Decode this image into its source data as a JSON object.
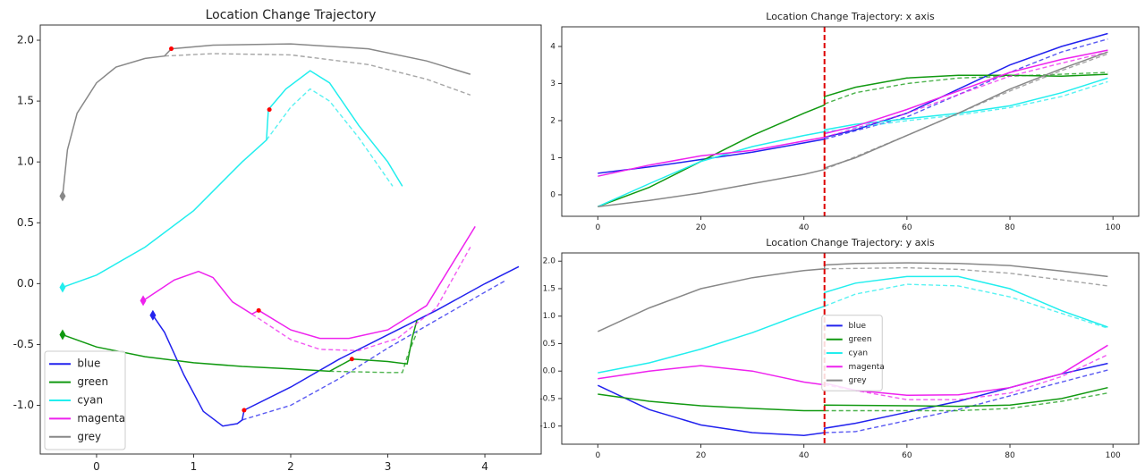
{
  "chart_data": [
    {
      "type": "line",
      "title": "Location Change Trajectory",
      "xlim": [
        -0.58,
        4.58
      ],
      "ylim": [
        -1.4,
        2.125
      ],
      "xticks": [
        0,
        1,
        2,
        3,
        4
      ],
      "yticks": [
        {
          "value": -1,
          "label": "-1.0"
        },
        -0.5,
        {
          "value": 0,
          "label": "0.0"
        },
        0.5,
        {
          "value": 1,
          "label": "1.0"
        },
        1.5,
        {
          "value": 2,
          "label": "2.0"
        }
      ],
      "legend": "lower left",
      "markers": true,
      "change_color": "#ff0000",
      "series": [
        {
          "name": "blue",
          "color": "#2222ee",
          "x": [
            0.58,
            0.7,
            0.9,
            1.1,
            1.3,
            1.45,
            1.5,
            1.52,
            2.0,
            2.5,
            3.0,
            3.5,
            4.0,
            4.35
          ],
          "values": [
            -0.26,
            -0.4,
            -0.75,
            -1.05,
            -1.17,
            -1.15,
            -1.12,
            -1.04,
            -0.85,
            -0.62,
            -0.42,
            -0.22,
            0.0,
            0.14
          ],
          "dashed": {
            "x": [
              1.5,
              2.0,
              2.5,
              3.0,
              3.5,
              4.0,
              4.2
            ],
            "values": [
              -1.12,
              -1.0,
              -0.78,
              -0.53,
              -0.3,
              -0.07,
              0.02
            ]
          },
          "change": {
            "x": 1.52,
            "y": -1.04
          }
        },
        {
          "name": "green",
          "color": "#119911",
          "x": [
            -0.35,
            0.0,
            0.5,
            1.0,
            1.5,
            2.0,
            2.4,
            2.63,
            3.0,
            3.2,
            3.25,
            3.3
          ],
          "values": [
            -0.42,
            -0.52,
            -0.6,
            -0.65,
            -0.68,
            -0.7,
            -0.72,
            -0.62,
            -0.64,
            -0.66,
            -0.45,
            -0.3
          ],
          "dashed": {
            "x": [
              2.4,
              3.0,
              3.15,
              3.2,
              3.3
            ],
            "values": [
              -0.72,
              -0.73,
              -0.73,
              -0.6,
              -0.4
            ]
          },
          "change": {
            "x": 2.63,
            "y": -0.62
          }
        },
        {
          "name": "cyan",
          "color": "#22eeee",
          "x": [
            -0.35,
            0.0,
            0.5,
            1.0,
            1.5,
            1.75,
            1.77,
            1.95,
            2.2,
            2.4,
            2.7,
            3.0,
            3.15
          ],
          "values": [
            -0.03,
            0.07,
            0.3,
            0.6,
            1.0,
            1.18,
            1.43,
            1.6,
            1.75,
            1.65,
            1.3,
            1.0,
            0.8
          ],
          "dashed": {
            "x": [
              1.75,
              2.0,
              2.2,
              2.4,
              2.7,
              3.05
            ],
            "values": [
              1.18,
              1.45,
              1.6,
              1.5,
              1.2,
              0.8
            ]
          },
          "change": {
            "x": 1.78,
            "y": 1.43
          }
        },
        {
          "name": "magenta",
          "color": "#ee22ee",
          "x": [
            0.48,
            0.8,
            1.05,
            1.2,
            1.4,
            1.6,
            1.67,
            2.0,
            2.3,
            2.6,
            3.0,
            3.4,
            3.9
          ],
          "values": [
            -0.14,
            0.03,
            0.1,
            0.05,
            -0.15,
            -0.25,
            -0.22,
            -0.38,
            -0.45,
            -0.45,
            -0.38,
            -0.18,
            0.47
          ],
          "dashed": {
            "x": [
              1.6,
              2.0,
              2.3,
              2.7,
              3.1,
              3.5,
              3.85
            ],
            "values": [
              -0.25,
              -0.46,
              -0.54,
              -0.55,
              -0.45,
              -0.2,
              0.3
            ]
          },
          "change": {
            "x": 1.67,
            "y": -0.22
          }
        },
        {
          "name": "grey",
          "color": "#888888",
          "x": [
            -0.35,
            -0.3,
            -0.2,
            0.0,
            0.2,
            0.5,
            0.7,
            0.77,
            1.2,
            2.0,
            2.8,
            3.4,
            3.85
          ],
          "values": [
            0.72,
            1.1,
            1.4,
            1.65,
            1.78,
            1.85,
            1.87,
            1.93,
            1.96,
            1.97,
            1.93,
            1.83,
            1.72
          ],
          "dashed": {
            "x": [
              0.7,
              1.2,
              2.0,
              2.8,
              3.4,
              3.85
            ],
            "values": [
              1.87,
              1.89,
              1.88,
              1.8,
              1.68,
              1.55
            ]
          },
          "change": {
            "x": 0.77,
            "y": 1.93
          }
        }
      ]
    },
    {
      "type": "line",
      "title": "Location Change Trajectory: x axis",
      "xlim": [
        -7,
        105
      ],
      "ylim": [
        -0.58,
        4.53
      ],
      "xticks": [
        0,
        20,
        40,
        60,
        80,
        100
      ],
      "yticks": [
        0,
        1,
        2,
        3,
        4
      ],
      "vline": 44,
      "vline_color": "#dd0000",
      "series": [
        {
          "name": "blue",
          "color": "#2222ee",
          "x": [
            0,
            10,
            20,
            30,
            40,
            44,
            44,
            50,
            60,
            70,
            80,
            90,
            99
          ],
          "values": [
            0.58,
            0.75,
            0.95,
            1.15,
            1.4,
            1.5,
            1.55,
            1.75,
            2.2,
            2.85,
            3.5,
            4.0,
            4.35
          ],
          "dashed": {
            "x": [
              44,
              60,
              70,
              80,
              90,
              99
            ],
            "values": [
              1.5,
              2.1,
              2.7,
              3.3,
              3.85,
              4.2
            ]
          }
        },
        {
          "name": "green",
          "color": "#119911",
          "x": [
            0,
            10,
            20,
            30,
            40,
            44,
            44,
            50,
            60,
            70,
            80,
            90,
            99
          ],
          "values": [
            -0.32,
            0.2,
            0.9,
            1.6,
            2.2,
            2.42,
            2.65,
            2.9,
            3.15,
            3.22,
            3.22,
            3.2,
            3.25
          ],
          "dashed": {
            "x": [
              44,
              50,
              60,
              70,
              80,
              90,
              99
            ],
            "values": [
              2.45,
              2.75,
              3.0,
              3.15,
              3.2,
              3.25,
              3.3
            ]
          }
        },
        {
          "name": "cyan",
          "color": "#22eeee",
          "x": [
            0,
            10,
            20,
            30,
            40,
            44,
            44,
            50,
            60,
            70,
            80,
            90,
            99
          ],
          "values": [
            -0.32,
            0.3,
            0.9,
            1.3,
            1.6,
            1.7,
            1.75,
            1.9,
            2.05,
            2.2,
            2.4,
            2.75,
            3.15
          ],
          "dashed": {
            "x": [
              44,
              60,
              70,
              80,
              90,
              99
            ],
            "values": [
              1.7,
              2.0,
              2.15,
              2.35,
              2.65,
              3.05
            ]
          }
        },
        {
          "name": "magenta",
          "color": "#ee22ee",
          "x": [
            0,
            10,
            20,
            30,
            40,
            44,
            44,
            50,
            60,
            70,
            80,
            90,
            99
          ],
          "values": [
            0.5,
            0.8,
            1.05,
            1.2,
            1.45,
            1.55,
            1.65,
            1.85,
            2.3,
            2.8,
            3.3,
            3.65,
            3.9
          ],
          "dashed": {
            "x": [
              44,
              60,
              70,
              80,
              90,
              99
            ],
            "values": [
              1.55,
              2.2,
              2.7,
              3.2,
              3.55,
              3.85
            ]
          }
        },
        {
          "name": "grey",
          "color": "#888888",
          "x": [
            0,
            10,
            20,
            30,
            40,
            44,
            44,
            50,
            60,
            70,
            80,
            90,
            99
          ],
          "values": [
            -0.32,
            -0.15,
            0.05,
            0.3,
            0.55,
            0.68,
            0.72,
            1.0,
            1.6,
            2.2,
            2.85,
            3.4,
            3.85
          ],
          "dashed": {
            "x": [
              44,
              60,
              70,
              80,
              90,
              99
            ],
            "values": [
              0.68,
              1.6,
              2.2,
              2.8,
              3.35,
              3.8
            ]
          }
        }
      ]
    },
    {
      "type": "line",
      "title": "Location Change Trajectory: y axis",
      "xlim": [
        -7,
        105
      ],
      "ylim": [
        -1.33,
        2.15
      ],
      "xticks": [
        0,
        20,
        40,
        60,
        80,
        100
      ],
      "yticks": [
        {
          "value": -1,
          "label": "-1.0"
        },
        -0.5,
        {
          "value": 0,
          "label": "0.0"
        },
        0.5,
        {
          "value": 1,
          "label": "1.0"
        },
        1.5,
        {
          "value": 2,
          "label": "2.0"
        }
      ],
      "vline": 44,
      "vline_color": "#dd0000",
      "legend": "center",
      "series": [
        {
          "name": "blue",
          "color": "#2222ee",
          "x": [
            0,
            10,
            20,
            30,
            40,
            44,
            44,
            50,
            60,
            70,
            80,
            90,
            99
          ],
          "values": [
            -0.26,
            -0.7,
            -0.98,
            -1.12,
            -1.17,
            -1.12,
            -1.04,
            -0.95,
            -0.75,
            -0.55,
            -0.3,
            -0.05,
            0.14
          ],
          "dashed": {
            "x": [
              44,
              50,
              60,
              70,
              80,
              90,
              99
            ],
            "values": [
              -1.12,
              -1.1,
              -0.9,
              -0.7,
              -0.45,
              -0.2,
              0.02
            ]
          }
        },
        {
          "name": "green",
          "color": "#119911",
          "x": [
            0,
            10,
            20,
            30,
            40,
            44,
            44,
            60,
            70,
            80,
            90,
            99
          ],
          "values": [
            -0.42,
            -0.55,
            -0.63,
            -0.68,
            -0.72,
            -0.72,
            -0.62,
            -0.63,
            -0.64,
            -0.62,
            -0.5,
            -0.3
          ],
          "dashed": {
            "x": [
              44,
              60,
              70,
              80,
              90,
              99
            ],
            "values": [
              -0.72,
              -0.72,
              -0.72,
              -0.68,
              -0.55,
              -0.4
            ]
          }
        },
        {
          "name": "cyan",
          "color": "#22eeee",
          "x": [
            0,
            10,
            20,
            30,
            40,
            44,
            44,
            50,
            60,
            70,
            80,
            90,
            99
          ],
          "values": [
            -0.03,
            0.15,
            0.4,
            0.7,
            1.05,
            1.18,
            1.43,
            1.6,
            1.72,
            1.72,
            1.5,
            1.1,
            0.8
          ],
          "dashed": {
            "x": [
              44,
              50,
              60,
              70,
              80,
              90,
              99
            ],
            "values": [
              1.18,
              1.4,
              1.58,
              1.55,
              1.35,
              1.05,
              0.78
            ]
          }
        },
        {
          "name": "magenta",
          "color": "#ee22ee",
          "x": [
            0,
            10,
            20,
            30,
            40,
            44,
            44,
            50,
            60,
            70,
            80,
            90,
            99
          ],
          "values": [
            -0.14,
            0.0,
            0.1,
            0.0,
            -0.2,
            -0.25,
            -0.22,
            -0.35,
            -0.44,
            -0.43,
            -0.3,
            -0.05,
            0.47
          ],
          "dashed": {
            "x": [
              44,
              60,
              70,
              80,
              90,
              99
            ],
            "values": [
              -0.25,
              -0.52,
              -0.52,
              -0.4,
              -0.1,
              0.3
            ]
          }
        },
        {
          "name": "grey",
          "color": "#888888",
          "x": [
            0,
            10,
            20,
            30,
            40,
            44,
            44,
            50,
            60,
            70,
            80,
            90,
            99
          ],
          "values": [
            0.72,
            1.15,
            1.5,
            1.7,
            1.83,
            1.86,
            1.93,
            1.96,
            1.97,
            1.96,
            1.92,
            1.82,
            1.72
          ],
          "dashed": {
            "x": [
              44,
              60,
              70,
              80,
              90,
              99
            ],
            "values": [
              1.86,
              1.88,
              1.85,
              1.78,
              1.66,
              1.55
            ]
          }
        }
      ]
    }
  ]
}
